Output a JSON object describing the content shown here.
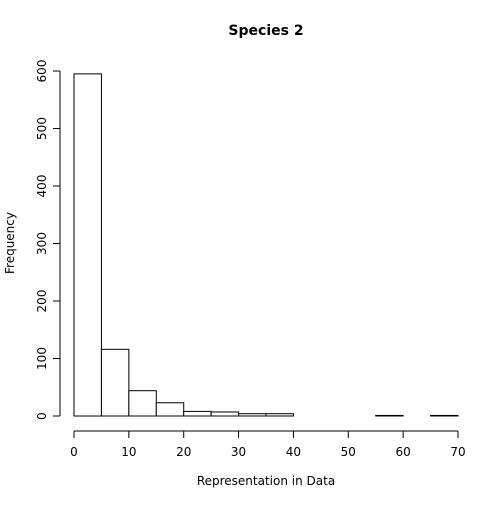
{
  "chart_data": {
    "type": "bar",
    "title": "Species 2",
    "xlabel": "Representation in Data",
    "ylabel": "Frequency",
    "bin_width": 5,
    "bins": [
      {
        "x0": 0,
        "x1": 5,
        "count": 595
      },
      {
        "x0": 5,
        "x1": 10,
        "count": 116
      },
      {
        "x0": 10,
        "x1": 15,
        "count": 44
      },
      {
        "x0": 15,
        "x1": 20,
        "count": 23
      },
      {
        "x0": 20,
        "x1": 25,
        "count": 8
      },
      {
        "x0": 25,
        "x1": 30,
        "count": 7
      },
      {
        "x0": 30,
        "x1": 35,
        "count": 4
      },
      {
        "x0": 35,
        "x1": 40,
        "count": 4
      },
      {
        "x0": 40,
        "x1": 45,
        "count": 0
      },
      {
        "x0": 45,
        "x1": 50,
        "count": 0
      },
      {
        "x0": 50,
        "x1": 55,
        "count": 0
      },
      {
        "x0": 55,
        "x1": 60,
        "count": 1
      },
      {
        "x0": 60,
        "x1": 65,
        "count": 0
      },
      {
        "x0": 65,
        "x1": 70,
        "count": 1
      }
    ],
    "xlim": [
      0,
      70
    ],
    "ylim": [
      0,
      600
    ],
    "x_ticks": [
      0,
      10,
      20,
      30,
      40,
      50,
      60,
      70
    ],
    "y_ticks": [
      0,
      100,
      200,
      300,
      400,
      500,
      600
    ],
    "grid": false,
    "colors": {
      "bar_fill": "#ffffff",
      "bar_stroke": "#000000",
      "axis": "#000000",
      "text": "#000000"
    }
  }
}
